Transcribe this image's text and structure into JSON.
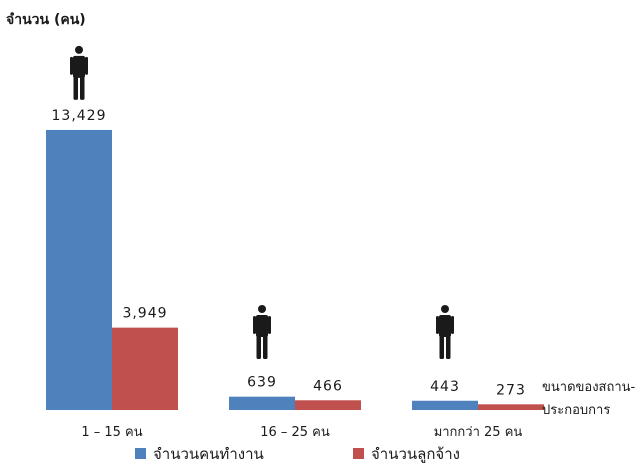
{
  "chart_data": {
    "type": "bar",
    "title": "",
    "ylabel": "จำนวน (คน)",
    "xlabel": "ขนาดของสถาน-ประกอบการ",
    "xlabel_lines": [
      "ขนาดของสถาน-",
      "ประกอบการ"
    ],
    "categories": [
      "1 – 15 คน",
      "16 – 25 คน",
      "มากกว่า 25  คน"
    ],
    "series": [
      {
        "name": "จำนวนคนทำงาน",
        "values": [
          13429,
          639,
          443
        ],
        "labels": [
          "13,429",
          "639",
          "443"
        ],
        "color": "#4f81bd"
      },
      {
        "name": "จำนวนลูกจ้าง",
        "values": [
          3949,
          466,
          273
        ],
        "labels": [
          "3,949",
          "466",
          "273"
        ],
        "color": "#c0504d"
      }
    ],
    "ylim": [
      0,
      14000
    ],
    "grid": false,
    "legend": "bottom",
    "icons": [
      "person-icon",
      "person-icon",
      "person-icon"
    ],
    "icon_color": "#1a1a1a"
  }
}
